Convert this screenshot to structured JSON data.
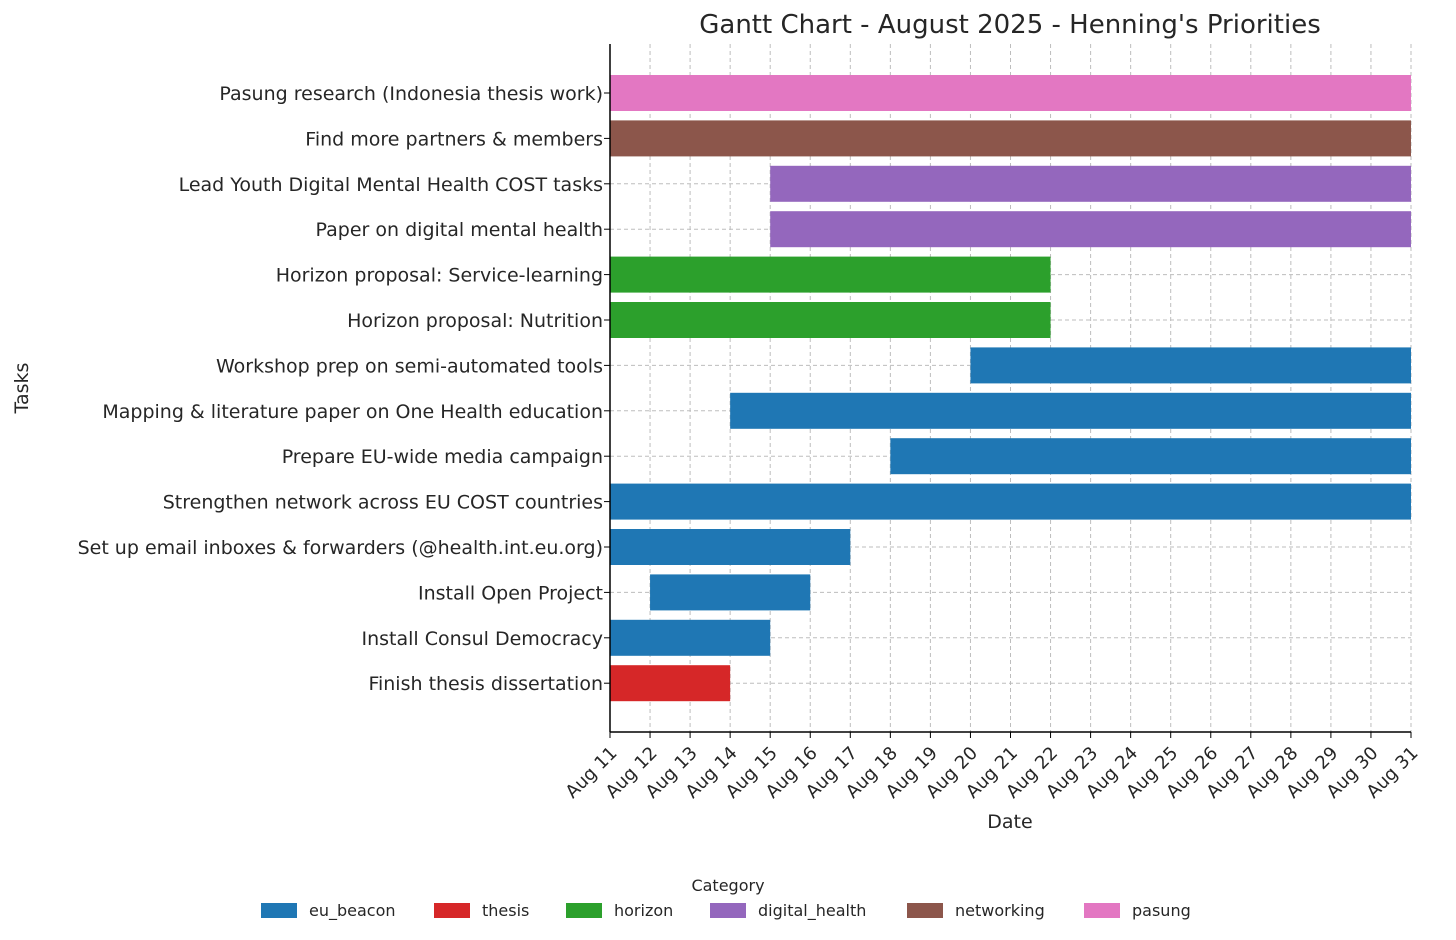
{
  "chart_data": {
    "type": "gantt",
    "title": "Gantt Chart - August 2025 - Henning's Priorities",
    "xlabel": "Date",
    "ylabel": "Tasks",
    "x_ticks": [
      "Aug 11",
      "Aug 12",
      "Aug 13",
      "Aug 14",
      "Aug 15",
      "Aug 16",
      "Aug 17",
      "Aug 18",
      "Aug 19",
      "Aug 20",
      "Aug 21",
      "Aug 22",
      "Aug 23",
      "Aug 24",
      "Aug 25",
      "Aug 26",
      "Aug 27",
      "Aug 28",
      "Aug 29",
      "Aug 30",
      "Aug 31"
    ],
    "x_range_days": [
      11,
      31
    ],
    "grid": true,
    "legend": {
      "title": "Category",
      "placement": "bottom-center",
      "entries": [
        {
          "key": "eu_beacon",
          "label": "eu_beacon",
          "color": "#1f77b4"
        },
        {
          "key": "thesis",
          "label": "thesis",
          "color": "#d62728"
        },
        {
          "key": "horizon",
          "label": "horizon",
          "color": "#2ca02c"
        },
        {
          "key": "digital_health",
          "label": "digital_health",
          "color": "#9467bd"
        },
        {
          "key": "networking",
          "label": "networking",
          "color": "#8c564b"
        },
        {
          "key": "pasung",
          "label": "pasung",
          "color": "#e377c2"
        }
      ]
    },
    "tasks": [
      {
        "task": "Pasung research (Indonesia thesis work)",
        "category": "pasung",
        "start_day": 11,
        "end_day": 31
      },
      {
        "task": "Find more partners & members",
        "category": "networking",
        "start_day": 11,
        "end_day": 31
      },
      {
        "task": "Lead Youth Digital Mental Health COST tasks",
        "category": "digital_health",
        "start_day": 15,
        "end_day": 31
      },
      {
        "task": "Paper on digital mental health",
        "category": "digital_health",
        "start_day": 15,
        "end_day": 31
      },
      {
        "task": "Horizon proposal: Service-learning",
        "category": "horizon",
        "start_day": 11,
        "end_day": 22
      },
      {
        "task": "Horizon proposal: Nutrition",
        "category": "horizon",
        "start_day": 11,
        "end_day": 22
      },
      {
        "task": "Workshop prep on semi-automated tools",
        "category": "eu_beacon",
        "start_day": 20,
        "end_day": 31
      },
      {
        "task": "Mapping & literature paper on One Health education",
        "category": "eu_beacon",
        "start_day": 14,
        "end_day": 31
      },
      {
        "task": "Prepare EU-wide media campaign",
        "category": "eu_beacon",
        "start_day": 18,
        "end_day": 31
      },
      {
        "task": "Strengthen network across EU COST countries",
        "category": "eu_beacon",
        "start_day": 11,
        "end_day": 31
      },
      {
        "task": "Set up email inboxes & forwarders (@health.int.eu.org)",
        "category": "eu_beacon",
        "start_day": 11,
        "end_day": 17
      },
      {
        "task": "Install Open Project",
        "category": "eu_beacon",
        "start_day": 12,
        "end_day": 16
      },
      {
        "task": "Install Consul Democracy",
        "category": "eu_beacon",
        "start_day": 11,
        "end_day": 15
      },
      {
        "task": "Finish thesis dissertation",
        "category": "thesis",
        "start_day": 11,
        "end_day": 14
      }
    ]
  }
}
